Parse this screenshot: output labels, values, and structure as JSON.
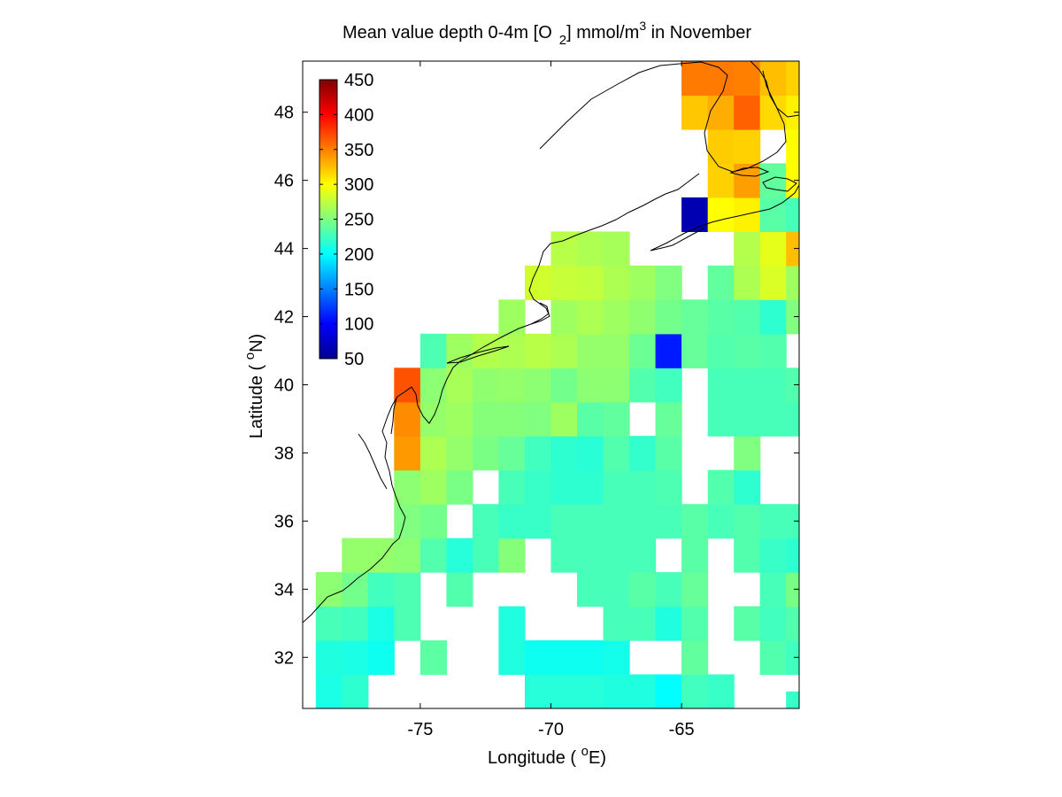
{
  "chart_data": {
    "type": "heatmap",
    "title": {
      "prefix": "Mean value depth 0-4m [O",
      "subscript": "2",
      "middle": "] mmol/m",
      "superscript": "3",
      "suffix": " in November"
    },
    "xlabel": {
      "prefix": "Longitude ( ",
      "superscript": "o",
      "suffix": "E)"
    },
    "ylabel": {
      "prefix": "Latitude ( ",
      "superscript": "o",
      "suffix": "N)"
    },
    "xlim": [
      -79.5,
      -60.5
    ],
    "ylim": [
      30.5,
      49.5
    ],
    "x_ticks": [
      -75,
      -70,
      -65
    ],
    "x_tick_labels": [
      "-75",
      "-70",
      "-65"
    ],
    "y_ticks": [
      32,
      34,
      36,
      38,
      40,
      42,
      44,
      46,
      48
    ],
    "y_tick_labels": [
      "32",
      "34",
      "36",
      "38",
      "40",
      "42",
      "44",
      "46",
      "48"
    ],
    "grid": false,
    "colorbar": {
      "colormap": "jet",
      "range": [
        50,
        450
      ],
      "ticks": [
        50,
        100,
        150,
        200,
        250,
        300,
        350,
        400,
        450
      ],
      "tick_labels": [
        "50",
        "100",
        "150",
        "200",
        "250",
        "300",
        "350",
        "400",
        "450"
      ],
      "placement": "inside top-left"
    },
    "cell_size_degrees": 1,
    "cells": [
      [
        -78.5,
        31,
        210
      ],
      [
        -78.5,
        32,
        212
      ],
      [
        -78.5,
        33,
        228
      ],
      [
        -78.5,
        34,
        255
      ],
      [
        -77.5,
        31,
        218
      ],
      [
        -77.5,
        32,
        210
      ],
      [
        -77.5,
        33,
        225
      ],
      [
        -77.5,
        34,
        245
      ],
      [
        -77.5,
        35,
        258
      ],
      [
        -76.5,
        32,
        205
      ],
      [
        -76.5,
        33,
        210
      ],
      [
        -76.5,
        34,
        225
      ],
      [
        -76.5,
        35,
        258
      ],
      [
        -75.5,
        33,
        230
      ],
      [
        -75.5,
        34,
        230
      ],
      [
        -75.5,
        35,
        255
      ],
      [
        -75.5,
        36,
        250
      ],
      [
        -75.5,
        37,
        255
      ],
      [
        -75.5,
        38,
        340
      ],
      [
        -75.5,
        39,
        345
      ],
      [
        -75.5,
        40,
        368
      ],
      [
        -74.5,
        32,
        236
      ],
      [
        -74.5,
        35,
        232
      ],
      [
        -74.5,
        36,
        245
      ],
      [
        -74.5,
        37,
        262
      ],
      [
        -74.5,
        38,
        268
      ],
      [
        -74.5,
        39,
        258
      ],
      [
        -74.5,
        40,
        255
      ],
      [
        -74.5,
        41,
        230
      ],
      [
        -73.5,
        34,
        232
      ],
      [
        -73.5,
        35,
        215
      ],
      [
        -73.5,
        37,
        248
      ],
      [
        -73.5,
        38,
        258
      ],
      [
        -73.5,
        39,
        262
      ],
      [
        -73.5,
        40,
        266
      ],
      [
        -73.5,
        41,
        262
      ],
      [
        -72.5,
        35,
        228
      ],
      [
        -72.5,
        36,
        228
      ],
      [
        -72.5,
        38,
        248
      ],
      [
        -72.5,
        39,
        252
      ],
      [
        -72.5,
        40,
        256
      ],
      [
        -72.5,
        41,
        270
      ],
      [
        -71.5,
        32,
        212
      ],
      [
        -71.5,
        33,
        212
      ],
      [
        -71.5,
        35,
        252
      ],
      [
        -71.5,
        36,
        222
      ],
      [
        -71.5,
        37,
        228
      ],
      [
        -71.5,
        38,
        240
      ],
      [
        -71.5,
        39,
        252
      ],
      [
        -71.5,
        40,
        258
      ],
      [
        -71.5,
        41,
        268
      ],
      [
        -71.5,
        42,
        262
      ],
      [
        -70.5,
        31,
        215
      ],
      [
        -70.5,
        32,
        205
      ],
      [
        -70.5,
        36,
        222
      ],
      [
        -70.5,
        37,
        222
      ],
      [
        -70.5,
        38,
        225
      ],
      [
        -70.5,
        39,
        250
      ],
      [
        -70.5,
        40,
        255
      ],
      [
        -70.5,
        41,
        272
      ],
      [
        -70.5,
        43,
        282
      ],
      [
        -69.5,
        31,
        215
      ],
      [
        -69.5,
        32,
        205
      ],
      [
        -69.5,
        35,
        228
      ],
      [
        -69.5,
        36,
        228
      ],
      [
        -69.5,
        37,
        218
      ],
      [
        -69.5,
        38,
        218
      ],
      [
        -69.5,
        39,
        262
      ],
      [
        -69.5,
        40,
        245
      ],
      [
        -69.5,
        41,
        268
      ],
      [
        -69.5,
        42,
        262
      ],
      [
        -69.5,
        43,
        278
      ],
      [
        -69.5,
        44,
        272
      ],
      [
        -68.5,
        31,
        215
      ],
      [
        -68.5,
        32,
        205
      ],
      [
        -68.5,
        34,
        228
      ],
      [
        -68.5,
        35,
        228
      ],
      [
        -68.5,
        36,
        228
      ],
      [
        -68.5,
        37,
        218
      ],
      [
        -68.5,
        38,
        216
      ],
      [
        -68.5,
        39,
        235
      ],
      [
        -68.5,
        40,
        255
      ],
      [
        -68.5,
        41,
        258
      ],
      [
        -68.5,
        42,
        268
      ],
      [
        -68.5,
        43,
        276
      ],
      [
        -68.5,
        44,
        268
      ],
      [
        -67.5,
        31,
        212
      ],
      [
        -67.5,
        32,
        208
      ],
      [
        -67.5,
        33,
        228
      ],
      [
        -67.5,
        34,
        228
      ],
      [
        -67.5,
        35,
        228
      ],
      [
        -67.5,
        36,
        228
      ],
      [
        -67.5,
        37,
        228
      ],
      [
        -67.5,
        38,
        232
      ],
      [
        -67.5,
        39,
        238
      ],
      [
        -67.5,
        40,
        255
      ],
      [
        -67.5,
        41,
        258
      ],
      [
        -67.5,
        42,
        262
      ],
      [
        -67.5,
        43,
        268
      ],
      [
        -67.5,
        44,
        265
      ],
      [
        -66.5,
        30.5,
        218
      ],
      [
        -66.5,
        31,
        212
      ],
      [
        -66.5,
        33,
        228
      ],
      [
        -66.5,
        34,
        235
      ],
      [
        -66.5,
        35,
        228
      ],
      [
        -66.5,
        36,
        228
      ],
      [
        -66.5,
        37,
        228
      ],
      [
        -66.5,
        38,
        220
      ],
      [
        -66.5,
        40,
        232
      ],
      [
        -66.5,
        41,
        242
      ],
      [
        -66.5,
        42,
        256
      ],
      [
        -66.5,
        43,
        262
      ],
      [
        -65.5,
        30.5,
        200
      ],
      [
        -65.5,
        31,
        200
      ],
      [
        -65.5,
        33,
        212
      ],
      [
        -65.5,
        34,
        228
      ],
      [
        -65.5,
        36,
        228
      ],
      [
        -65.5,
        37,
        230
      ],
      [
        -65.5,
        38,
        235
      ],
      [
        -65.5,
        39,
        240
      ],
      [
        -65.5,
        40,
        225
      ],
      [
        -65.5,
        41,
        110
      ],
      [
        -65.5,
        42,
        245
      ],
      [
        -65.5,
        43,
        250
      ],
      [
        -64.5,
        31,
        225
      ],
      [
        -64.5,
        32,
        238
      ],
      [
        -64.5,
        33,
        232
      ],
      [
        -64.5,
        34,
        240
      ],
      [
        -64.5,
        35,
        235
      ],
      [
        -64.5,
        36,
        235
      ],
      [
        -64.5,
        41,
        240
      ],
      [
        -64.5,
        42,
        240
      ],
      [
        -64.5,
        45,
        70
      ],
      [
        -64.5,
        48,
        322
      ],
      [
        -64.5,
        49,
        352
      ],
      [
        -63.5,
        31,
        222
      ],
      [
        -63.5,
        36,
        228
      ],
      [
        -63.5,
        37,
        232
      ],
      [
        -63.5,
        39,
        228
      ],
      [
        -63.5,
        40,
        228
      ],
      [
        -63.5,
        41,
        232
      ],
      [
        -63.5,
        42,
        235
      ],
      [
        -63.5,
        43,
        238
      ],
      [
        -63.5,
        45,
        300
      ],
      [
        -63.5,
        46,
        318
      ],
      [
        -63.5,
        47,
        320
      ],
      [
        -63.5,
        48,
        332
      ],
      [
        -63.5,
        49,
        352
      ],
      [
        -62.5,
        33,
        235
      ],
      [
        -62.5,
        35,
        232
      ],
      [
        -62.5,
        36,
        232
      ],
      [
        -62.5,
        37,
        218
      ],
      [
        -62.5,
        38,
        250
      ],
      [
        -62.5,
        39,
        228
      ],
      [
        -62.5,
        40,
        228
      ],
      [
        -62.5,
        41,
        235
      ],
      [
        -62.5,
        42,
        232
      ],
      [
        -62.5,
        43,
        268
      ],
      [
        -62.5,
        44,
        270
      ],
      [
        -62.5,
        45,
        305
      ],
      [
        -62.5,
        46,
        338
      ],
      [
        -62.5,
        47,
        318
      ],
      [
        -62.5,
        48,
        362
      ],
      [
        -62.5,
        49,
        350
      ],
      [
        -61.5,
        32,
        232
      ],
      [
        -61.5,
        33,
        225
      ],
      [
        -61.5,
        34,
        228
      ],
      [
        -61.5,
        35,
        222
      ],
      [
        -61.5,
        36,
        228
      ],
      [
        -61.5,
        39,
        228
      ],
      [
        -61.5,
        40,
        228
      ],
      [
        -61.5,
        41,
        232
      ],
      [
        -61.5,
        42,
        218
      ],
      [
        -61.5,
        43,
        285
      ],
      [
        -61.5,
        44,
        290
      ],
      [
        -61.5,
        45,
        235
      ],
      [
        -61.5,
        46,
        238
      ],
      [
        -61.5,
        48,
        315
      ],
      [
        -61.5,
        49,
        325
      ],
      [
        -60.5,
        30.5,
        222
      ],
      [
        -60.5,
        32,
        225
      ],
      [
        -60.5,
        33,
        232
      ],
      [
        -60.5,
        34,
        248
      ],
      [
        -60.5,
        35,
        218
      ],
      [
        -60.5,
        36,
        228
      ],
      [
        -60.5,
        39,
        228
      ],
      [
        -60.5,
        40,
        232
      ],
      [
        -60.5,
        42,
        250
      ],
      [
        -60.5,
        43,
        262
      ],
      [
        -60.5,
        44,
        325
      ],
      [
        -60.5,
        45,
        228
      ],
      [
        -60.5,
        46,
        300
      ],
      [
        -60.5,
        47,
        300
      ],
      [
        -60.5,
        48,
        305
      ],
      [
        -60.5,
        49,
        318
      ]
    ]
  }
}
